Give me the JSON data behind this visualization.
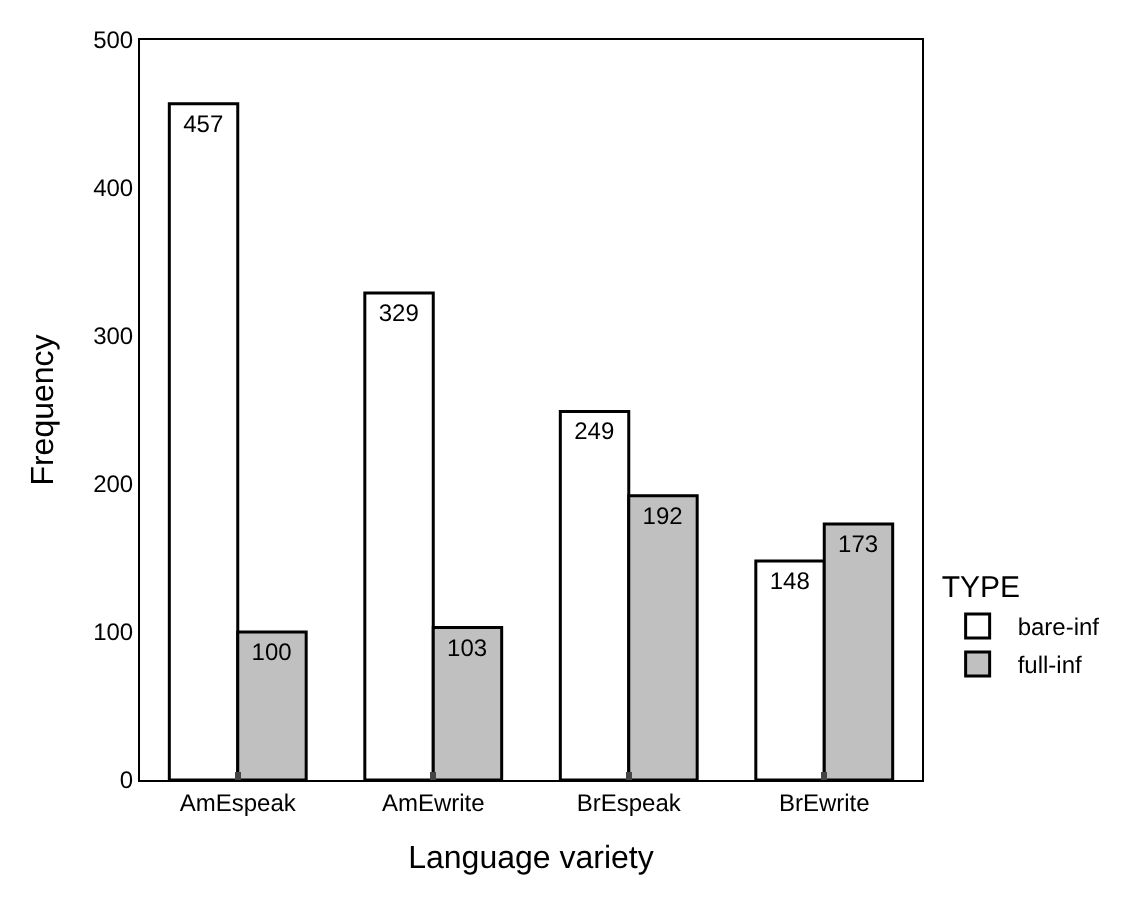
{
  "chart_data": {
    "type": "bar",
    "xlabel": "Language variety",
    "ylabel": "Frequency",
    "legend_title": "TYPE",
    "categories": [
      "AmEspeak",
      "AmEwrite",
      "BrEspeak",
      "BrEwrite"
    ],
    "series": [
      {
        "name": "bare-inf",
        "color": "#ffffff",
        "values": [
          457,
          329,
          249,
          148
        ]
      },
      {
        "name": "full-inf",
        "color": "#c0c0c0",
        "values": [
          100,
          103,
          192,
          173
        ]
      }
    ],
    "ylim": [
      0,
      500
    ],
    "yticks": [
      0,
      100,
      200,
      300,
      400,
      500
    ],
    "legend": "right",
    "data_labels": true
  }
}
